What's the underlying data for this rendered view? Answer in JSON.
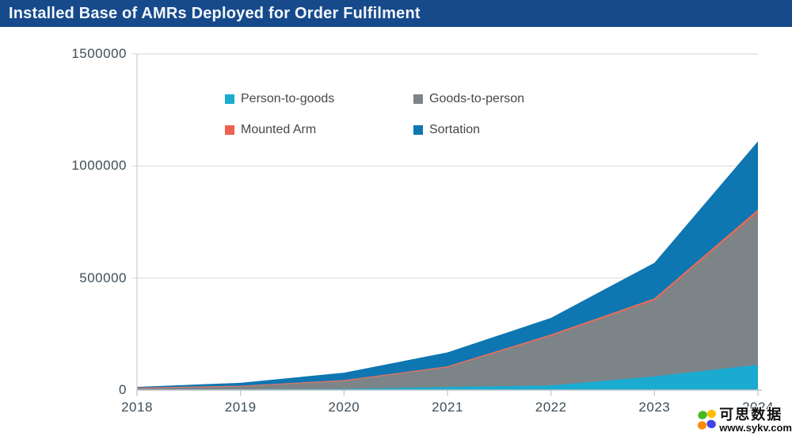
{
  "title_bar": {
    "title": "Installed Base of AMRs Deployed for Order Fulfilment"
  },
  "colors": {
    "title_bar_bg": "#174A8B",
    "title_text": "#F3F7FB",
    "grid": "#DADDDF",
    "axis": "#BDC3C7",
    "tick_label": "#3E4E59",
    "legend_text": "#45484B",
    "mounted_arm_line": "#DD7668",
    "background": "#FFFFFF"
  },
  "legend": {
    "items": [
      {
        "label": "Person-to-goods",
        "color": "#1BABD0"
      },
      {
        "label": "Goods-to-person",
        "color": "#7D8487"
      },
      {
        "label": "Mounted Arm",
        "color": "#EE6150"
      },
      {
        "label": "Sortation",
        "color": "#0E76B1"
      }
    ]
  },
  "chart_data": {
    "type": "area",
    "stacked": true,
    "title": "Installed Base of AMRs Deployed for Order Fulfilment",
    "x": [
      2018,
      2019,
      2020,
      2021,
      2022,
      2023,
      2024
    ],
    "x_labels": [
      "2018",
      "2019",
      "2020",
      "2021",
      "2022",
      "2023",
      "2024"
    ],
    "series": [
      {
        "name": "Person-to-goods",
        "color": "#1BABD0",
        "values": [
          1500,
          3000,
          5000,
          14000,
          21000,
          61000,
          113000
        ]
      },
      {
        "name": "Goods-to-person",
        "color": "#7D8487",
        "values": [
          7000,
          13000,
          35000,
          87000,
          220000,
          339000,
          680000
        ]
      },
      {
        "name": "Mounted Arm",
        "color": "#EE6150",
        "values": [
          500,
          1500,
          2500,
          3000,
          5000,
          7000,
          10000
        ]
      },
      {
        "name": "Sortation",
        "color": "#0E76B1",
        "values": [
          5000,
          15000,
          35000,
          64000,
          76000,
          161000,
          307000
        ]
      }
    ],
    "ylim": [
      0,
      1500000
    ],
    "yticks": [
      0,
      500000,
      1000000,
      1500000
    ],
    "ytick_labels": [
      "0",
      "500000",
      "1000000",
      "1500000"
    ],
    "grid": true,
    "legend_position": "top-center"
  },
  "watermark": {
    "cjk_text": "可思数据",
    "url": "www.sykv.com",
    "petal_colors": {
      "top_left": "#46BB1F",
      "top_right": "#FFBE00",
      "bottom_left": "#FF8A00",
      "bottom_right": "#4343E6"
    }
  }
}
